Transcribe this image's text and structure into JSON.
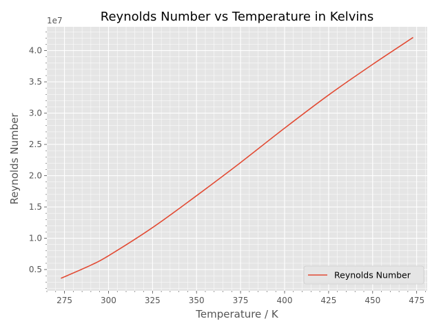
{
  "chart_data": {
    "type": "line",
    "title": "Reynolds Number vs Temperature in Kelvins",
    "xlabel": "Temperature / K",
    "ylabel": "Reynolds Number",
    "y_offset_text": "1e7",
    "xlim": [
      265,
      481
    ],
    "ylim": [
      0.16,
      4.38
    ],
    "x_ticks": [
      275,
      300,
      325,
      350,
      375,
      400,
      425,
      450,
      475
    ],
    "x_tick_labels": [
      "275",
      "300",
      "325",
      "350",
      "375",
      "400",
      "425",
      "450",
      "475"
    ],
    "y_ticks": [
      0.5,
      1.0,
      1.5,
      2.0,
      2.5,
      3.0,
      3.5,
      4.0
    ],
    "y_tick_labels": [
      "0.5",
      "1.0",
      "1.5",
      "2.0",
      "2.5",
      "3.0",
      "3.5",
      "4.0"
    ],
    "grid": true,
    "legend_position": "lower-right",
    "series": [
      {
        "name": "Reynolds Number",
        "color": "#E24A33",
        "x": [
          273,
          290,
          300,
          325,
          350,
          375,
          400,
          425,
          450,
          473
        ],
        "y": [
          0.36,
          0.57,
          0.72,
          1.17,
          1.68,
          2.21,
          2.76,
          3.29,
          3.78,
          4.21
        ]
      }
    ]
  }
}
